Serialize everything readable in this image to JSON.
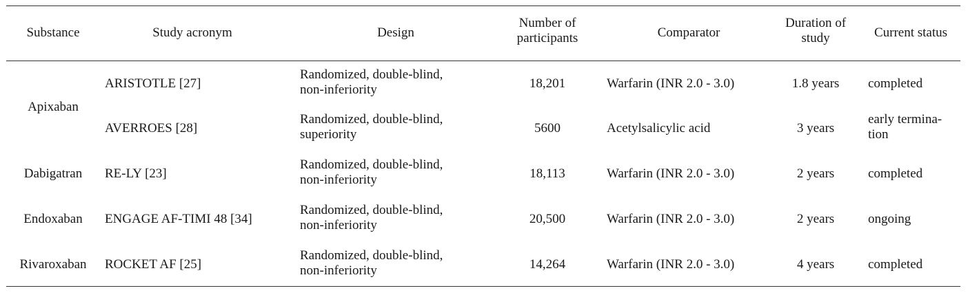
{
  "headers": {
    "substance": "Substance",
    "study_acronym": "Study acronym",
    "design": "Design",
    "participants": "Number of\nparticipants",
    "comparator": "Comparator",
    "duration": "Duration of\nstudy",
    "status": "Current status"
  },
  "rows": [
    {
      "substance": "Apixaban",
      "acronym": "ARISTOTLE [27]",
      "design": "Randomized, double-blind,\nnon-inferiority",
      "participants": "18,201",
      "comparator": "Warfarin (INR 2.0 - 3.0)",
      "duration": "1.8 years",
      "status": "completed"
    },
    {
      "substance": "",
      "acronym": "AVERROES [28]",
      "design": "Randomized, double-blind,\nsuperiority",
      "participants": "5600",
      "comparator": "Acetylsalicylic acid",
      "duration": "3 years",
      "status": "early termina-\ntion"
    },
    {
      "substance": "Dabigatran",
      "acronym": "RE-LY [23]",
      "design": "Randomized, double-blind,\nnon-inferiority",
      "participants": "18,113",
      "comparator": "Warfarin (INR 2.0 - 3.0)",
      "duration": "2 years",
      "status": "completed"
    },
    {
      "substance": "Endoxaban",
      "acronym": "ENGAGE AF-TIMI 48 [34]",
      "design": "Randomized, double-blind,\nnon-inferiority",
      "participants": "20,500",
      "comparator": "Warfarin (INR 2.0 - 3.0)",
      "duration": "2 years",
      "status": "ongoing"
    },
    {
      "substance": "Rivaroxaban",
      "acronym": "ROCKET AF [25]",
      "design": "Randomized, double-blind,\nnon-inferiority",
      "participants": "14,264",
      "comparator": "Warfarin (INR 2.0 - 3.0)",
      "duration": "4 years",
      "status": "completed"
    }
  ]
}
